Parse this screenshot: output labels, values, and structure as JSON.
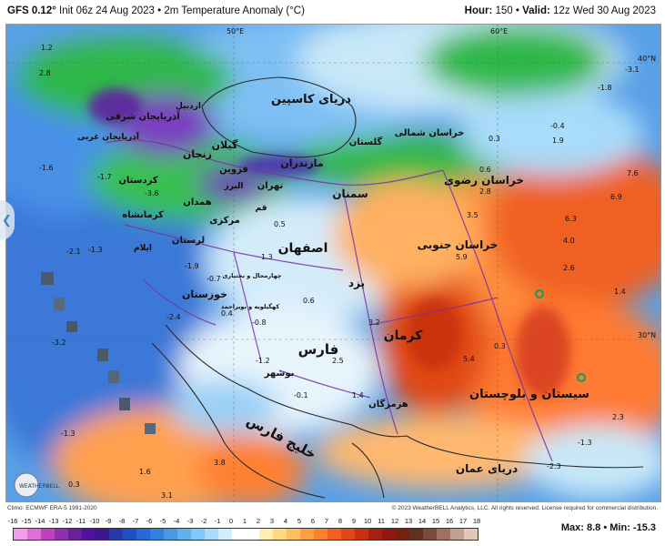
{
  "header": {
    "model": "GFS 0.12°",
    "init": "Init 06z 24 Aug 2023",
    "separator": "•",
    "product": "2m Temperature Anomaly (°C)",
    "hour_label": "Hour:",
    "hour_value": "150",
    "valid_label": "Valid:",
    "valid_value": "12z Wed 30 Aug 2023"
  },
  "map": {
    "coord_labels": [
      "50°E",
      "60°E",
      "40°N",
      "30°N"
    ],
    "sea_labels": [
      "دریای کاسپین",
      "خلیج فارس",
      "دریای عمان"
    ],
    "province_labels": [
      "اردبیل",
      "آذربایجان شرقی",
      "آذربایجان غربی",
      "زنجان",
      "گیلان",
      "قزوین",
      "مازندران",
      "گلستان",
      "خراسان شمالی",
      "تهران",
      "البرز",
      "قم",
      "سمنان",
      "خراسان رضوی",
      "کردستان",
      "همدان",
      "کرمانشاه",
      "مرکزی",
      "لرستان",
      "ایلام",
      "اصفهان",
      "خراسان جنوبی",
      "یزد",
      "خوزستان",
      "چهارمحال و بختیاری",
      "کهگیلویه و بویراحمد",
      "فارس",
      "کرمان",
      "بوشهر",
      "هرمزگان",
      "سیستان و بلوچستان"
    ],
    "values": [
      "1.2",
      "2.8",
      "-1.6",
      "-2.1",
      "-1.3",
      "-3.6",
      "-1.7",
      "-3.1",
      "-1.8",
      "-0.4",
      "1.9",
      "0.3",
      "0.6",
      "7.6",
      "6.9",
      "6.3",
      "4.0",
      "2.6",
      "1.4",
      "2.8",
      "3.5",
      "5.9",
      "0.5",
      "1.3",
      "-1.9",
      "-0.7",
      "-2.4",
      "0.4",
      "-0.8",
      "0.6",
      "3.2",
      "2.5",
      "-1.2",
      "-3.2",
      "1.4",
      "-0.1",
      "5.4",
      "0.3",
      "2.3",
      "-1.3",
      "3.8",
      "1.6",
      "3.1",
      "-1.3",
      "0.3",
      "-2.3"
    ],
    "logo_text": "WEATHERBELL"
  },
  "footer": {
    "climo": "Climo: ECMWF ERA-5 1991-2020",
    "copyright": "© 2023 WeatherBELL Analytics, LLC. All rights reserved. License required for commercial distribution.",
    "scale_ticks": [
      "-16",
      "-15",
      "-14",
      "-13",
      "-12",
      "-11",
      "-10",
      "-9",
      "-8",
      "-7",
      "-6",
      "-5",
      "-4",
      "-3",
      "-2",
      "-1",
      "0",
      "1",
      "2",
      "3",
      "4",
      "5",
      "6",
      "7",
      "8",
      "9",
      "10",
      "11",
      "12",
      "13",
      "14",
      "15",
      "16",
      "17",
      "18"
    ],
    "scale_colors": [
      "#f0a0e8",
      "#e070d8",
      "#c040c0",
      "#9030b0",
      "#6820a0",
      "#5010a0",
      "#3c1890",
      "#2838a8",
      "#2050c0",
      "#2868d8",
      "#3080e0",
      "#4898e8",
      "#60b0f0",
      "#80c8f8",
      "#a8dcfa",
      "#d0eefc",
      "#ffffff",
      "#ffffff",
      "#fff0b0",
      "#ffd880",
      "#ffc060",
      "#ffa040",
      "#ff8030",
      "#f06020",
      "#e04818",
      "#c83010",
      "#a82010",
      "#901810",
      "#782010",
      "#603020",
      "#7a4a3a",
      "#a07060",
      "#c0a090",
      "#e0c8b8"
    ],
    "max_label": "Max:",
    "max_value": "8.8",
    "min_label": "Min:",
    "min_value": "-15.3"
  }
}
